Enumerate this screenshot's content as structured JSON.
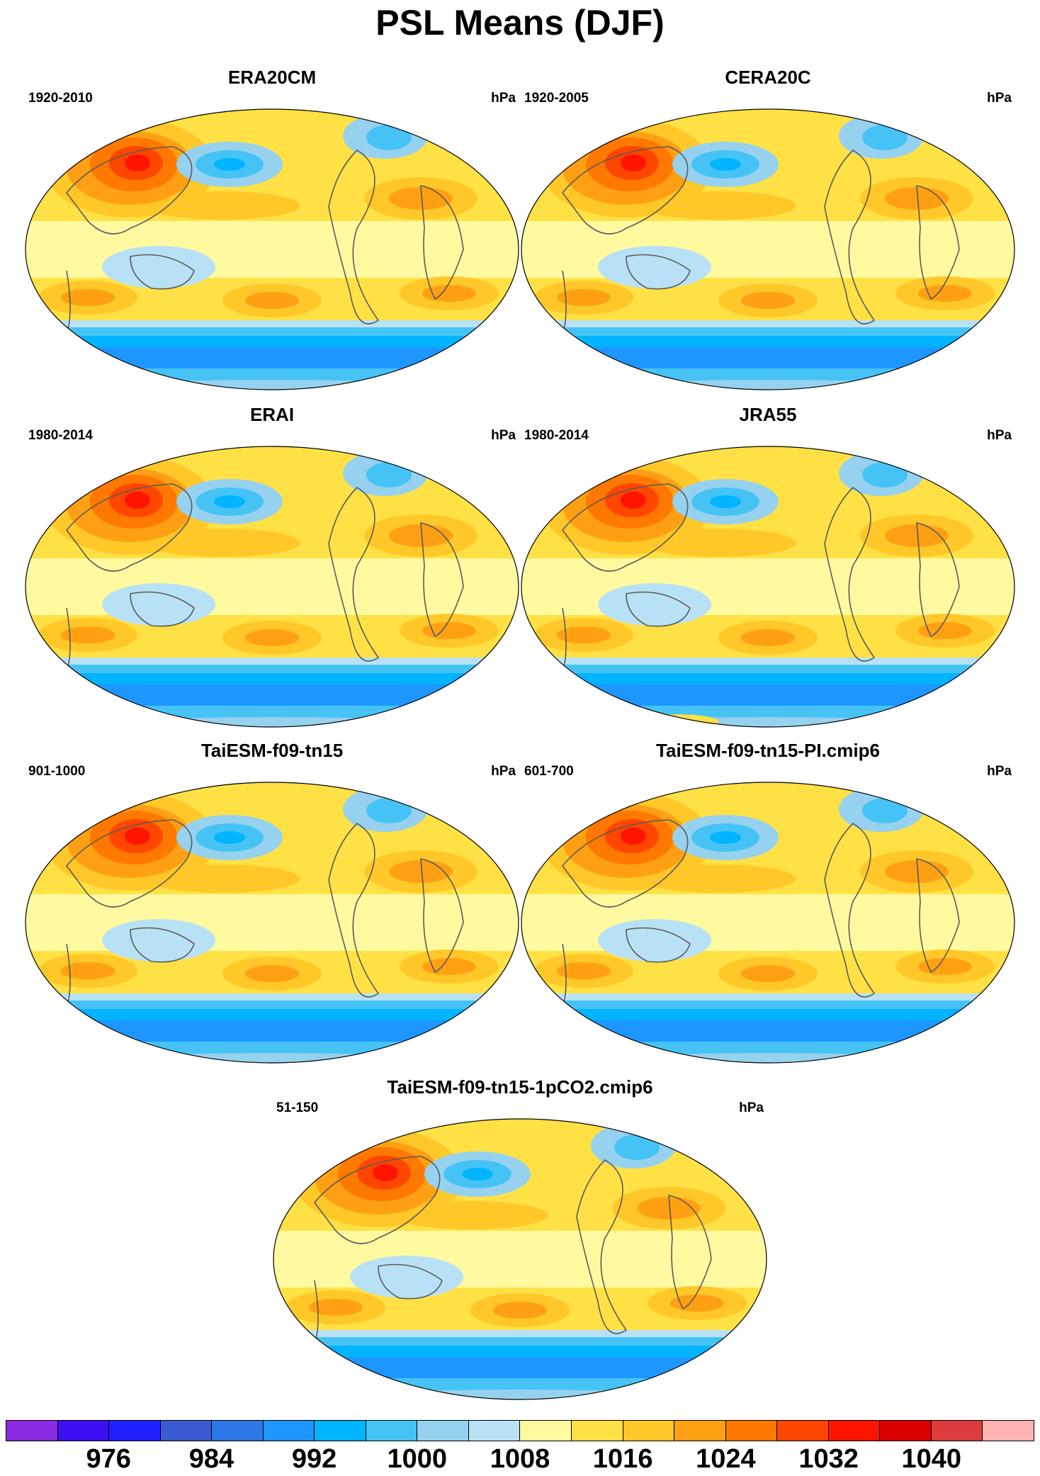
{
  "figure": {
    "title": "PSL Means (DJF)"
  },
  "panels": [
    {
      "title": "ERA20CM",
      "period": "1920-2010",
      "units": "hPa",
      "variant": 0
    },
    {
      "title": "CERA20C",
      "period": "1920-2005",
      "units": "hPa",
      "variant": 1
    },
    {
      "title": "ERAI",
      "period": "1980-2014",
      "units": "hPa",
      "variant": 2
    },
    {
      "title": "JRA55",
      "period": "1980-2014",
      "units": "hPa",
      "variant": 3
    },
    {
      "title": "TaiESM-f09-tn15",
      "period": "901-1000",
      "units": "hPa",
      "variant": 4
    },
    {
      "title": "TaiESM-f09-tn15-PI.cmip6",
      "period": "601-700",
      "units": "hPa",
      "variant": 5
    },
    {
      "title": "TaiESM-f09-tn15-1pCO2.cmip6",
      "period": "51-150",
      "units": "hPa",
      "variant": 6
    }
  ],
  "colorbar": {
    "colors": [
      "#8a2be2",
      "#3c10f0",
      "#1e1eff",
      "#3c5ad2",
      "#2e78e6",
      "#1e96ff",
      "#00b4ff",
      "#46c3f5",
      "#96d2f0",
      "#b9e1f5",
      "#fffaa0",
      "#ffe146",
      "#ffc828",
      "#ffa014",
      "#ff7800",
      "#ff4600",
      "#ff1400",
      "#dc0000",
      "#dc3c3c",
      "#ffb4b4"
    ],
    "labels": [
      "976",
      "984",
      "992",
      "1000",
      "1008",
      "1016",
      "1024",
      "1032",
      "1040"
    ]
  },
  "colors": {
    "ocean_low_lat": "#fffaa0",
    "subtropical_high": "#ffc828",
    "siberian_high": "#ff4600",
    "aleutian_low": "#46c3f5",
    "southern_ocean": "#1e96ff",
    "coastline": "#5a5a5a"
  }
}
